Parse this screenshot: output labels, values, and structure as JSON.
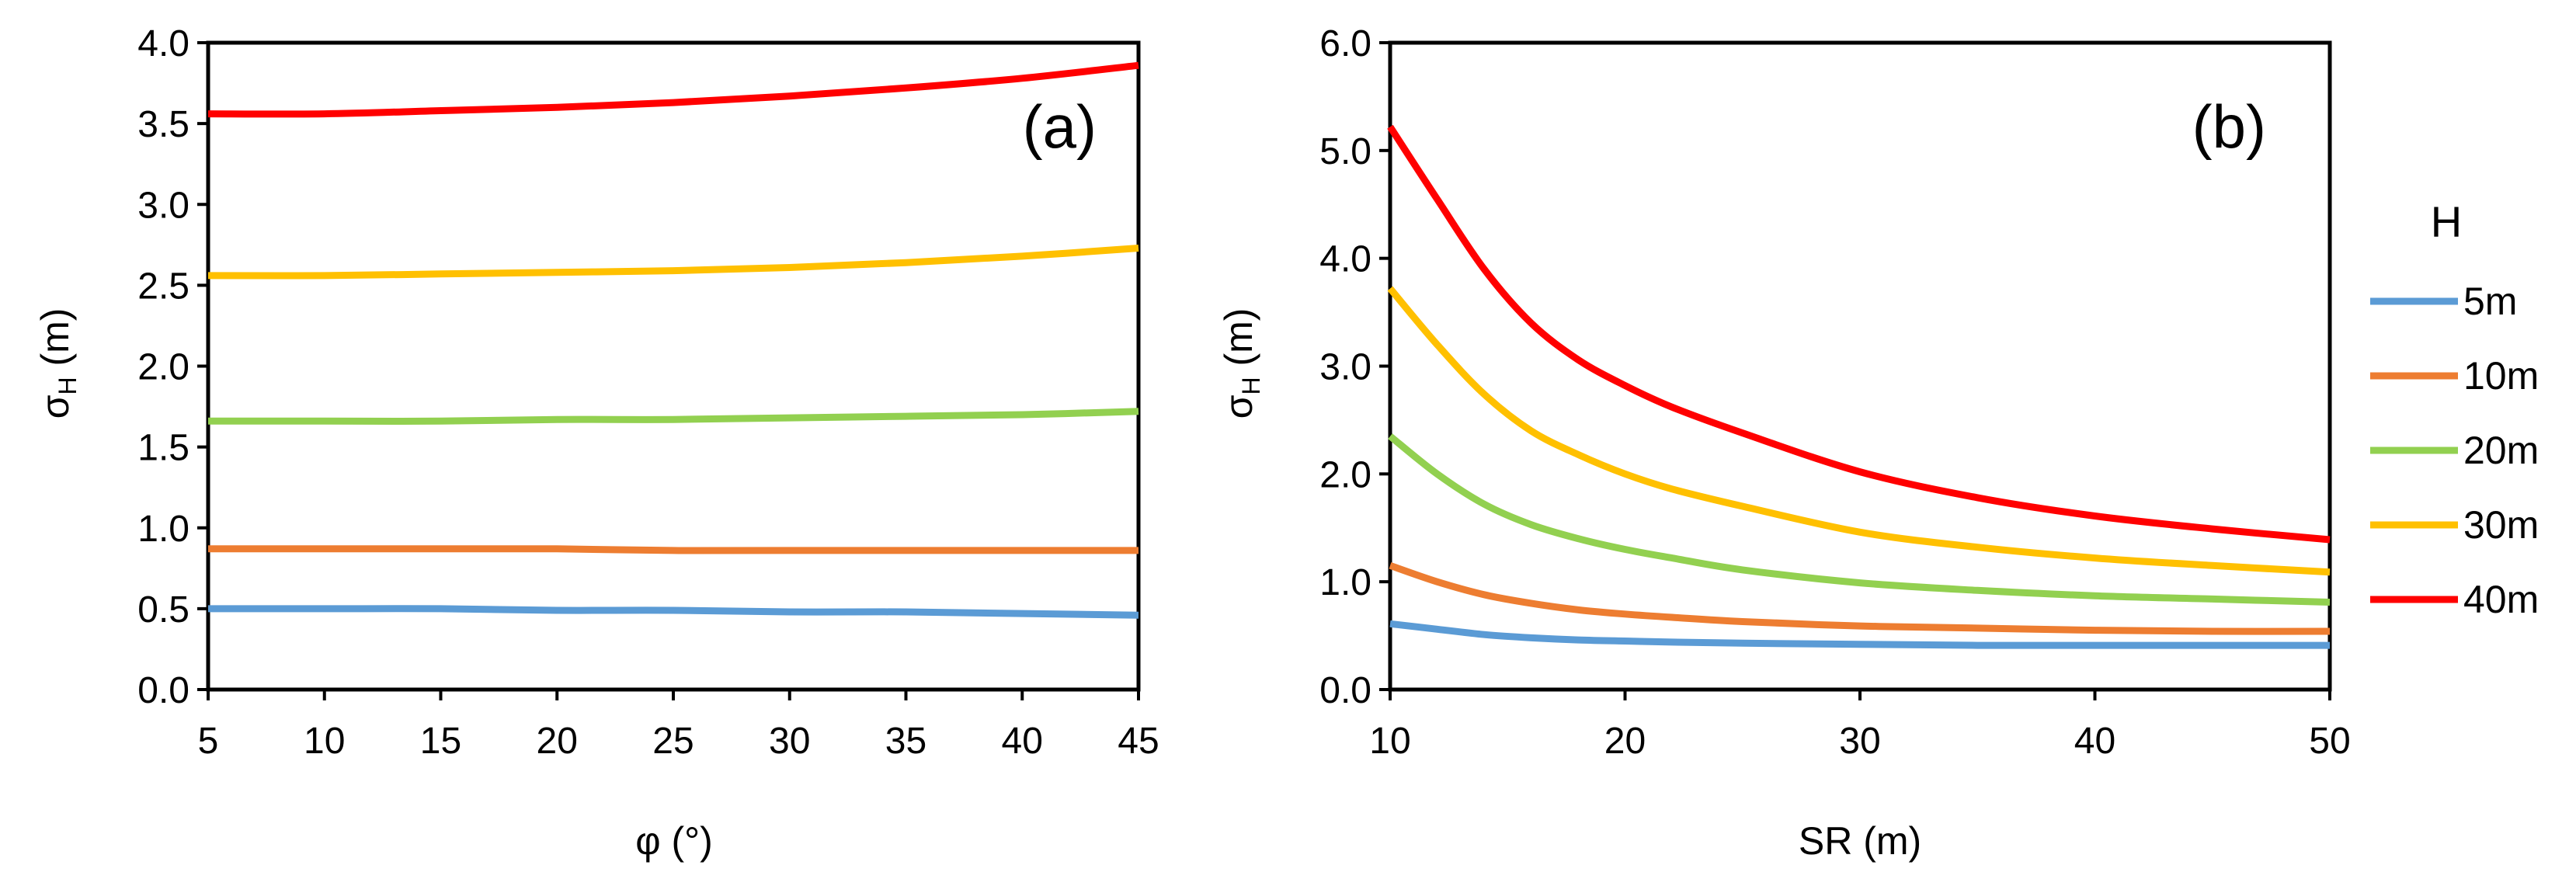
{
  "chart_data": [
    {
      "type": "line",
      "panel_label": "(a)",
      "xlabel": "φ (°)",
      "ylabel": {
        "main": "σ",
        "sub": "H",
        "rest": " (m)"
      },
      "xlim": [
        5,
        45
      ],
      "ylim": [
        0,
        4
      ],
      "x_ticks": [
        "5",
        "10",
        "15",
        "20",
        "25",
        "30",
        "35",
        "40",
        "45"
      ],
      "y_ticks": [
        "0.0",
        "0.5",
        "1.0",
        "1.5",
        "2.0",
        "2.5",
        "3.0",
        "3.5",
        "4.0"
      ],
      "x": [
        5,
        10,
        15,
        20,
        25,
        30,
        35,
        40,
        45
      ],
      "series": [
        {
          "name": "5m",
          "color": "#5B9BD5",
          "values": [
            0.5,
            0.5,
            0.5,
            0.49,
            0.49,
            0.48,
            0.48,
            0.47,
            0.46
          ]
        },
        {
          "name": "10m",
          "color": "#ED7D31",
          "values": [
            0.87,
            0.87,
            0.87,
            0.87,
            0.86,
            0.86,
            0.86,
            0.86,
            0.86
          ]
        },
        {
          "name": "20m",
          "color": "#92D050",
          "values": [
            1.66,
            1.66,
            1.66,
            1.67,
            1.67,
            1.68,
            1.69,
            1.7,
            1.72
          ]
        },
        {
          "name": "30m",
          "color": "#FFC000",
          "values": [
            2.56,
            2.56,
            2.57,
            2.58,
            2.59,
            2.61,
            2.64,
            2.68,
            2.73
          ]
        },
        {
          "name": "40m",
          "color": "#FF0000",
          "values": [
            3.56,
            3.56,
            3.58,
            3.6,
            3.63,
            3.67,
            3.72,
            3.78,
            3.86
          ]
        }
      ]
    },
    {
      "type": "line",
      "panel_label": "(b)",
      "xlabel": "SR (m)",
      "ylabel": {
        "main": "σ",
        "sub": "H",
        "rest": " (m)"
      },
      "xlim": [
        10,
        50
      ],
      "ylim": [
        0,
        6
      ],
      "x_ticks": [
        "10",
        "20",
        "30",
        "40",
        "50"
      ],
      "y_ticks": [
        "0.0",
        "1.0",
        "2.0",
        "3.0",
        "4.0",
        "5.0",
        "6.0"
      ],
      "x": [
        10,
        12,
        14,
        16,
        18,
        20,
        22,
        25,
        30,
        35,
        40,
        45,
        50
      ],
      "series": [
        {
          "name": "5m",
          "color": "#5B9BD5",
          "values": [
            0.61,
            0.56,
            0.51,
            0.48,
            0.46,
            0.45,
            0.44,
            0.43,
            0.42,
            0.41,
            0.41,
            0.41,
            0.41
          ]
        },
        {
          "name": "10m",
          "color": "#ED7D31",
          "values": [
            1.15,
            1.0,
            0.88,
            0.8,
            0.74,
            0.7,
            0.67,
            0.63,
            0.59,
            0.57,
            0.55,
            0.54,
            0.54
          ]
        },
        {
          "name": "20m",
          "color": "#92D050",
          "values": [
            2.35,
            2.0,
            1.72,
            1.53,
            1.4,
            1.3,
            1.22,
            1.11,
            0.99,
            0.92,
            0.87,
            0.84,
            0.81
          ]
        },
        {
          "name": "30m",
          "color": "#FFC000",
          "values": [
            3.72,
            3.2,
            2.74,
            2.4,
            2.18,
            2.0,
            1.86,
            1.7,
            1.46,
            1.32,
            1.22,
            1.15,
            1.09
          ]
        },
        {
          "name": "40m",
          "color": "#FF0000",
          "values": [
            5.22,
            4.55,
            3.9,
            3.4,
            3.06,
            2.82,
            2.62,
            2.38,
            2.02,
            1.78,
            1.61,
            1.49,
            1.39
          ]
        }
      ],
      "legend": {
        "title": "H",
        "position": "right",
        "items": [
          {
            "label": "5m",
            "color": "#5B9BD5"
          },
          {
            "label": "10m",
            "color": "#ED7D31"
          },
          {
            "label": "20m",
            "color": "#92D050"
          },
          {
            "label": "30m",
            "color": "#FFC000"
          },
          {
            "label": "40m",
            "color": "#FF0000"
          }
        ]
      }
    }
  ]
}
